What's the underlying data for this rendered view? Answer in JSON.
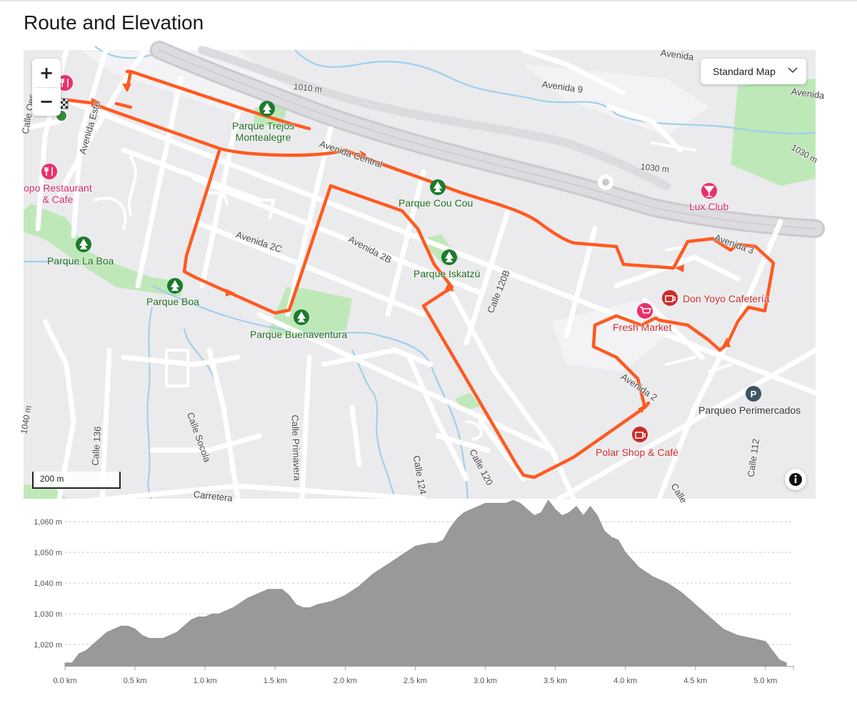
{
  "title": "Route and Elevation",
  "map": {
    "zoom_in_label": "+",
    "zoom_out_label": "−",
    "map_type": "Standard Map",
    "scale": "200 m",
    "accent": "#ff5a1f",
    "labels": {
      "parque_trejos": "Parque Trejos\nMontealegre",
      "parque_cou": "Parque Cou Cou",
      "parque_laboa": "Parque La Boa",
      "parque_boa": "Parque Boa",
      "parque_buena": "Parque Buenaventura",
      "parque_iskatzu": "Parque Iskatzú",
      "restaurant": "opo Restaurant\n& Cafe",
      "lux": "Lux Club",
      "donyoyo": "Don Yoyo Cafetería",
      "fresh": "Fresh Market",
      "polar": "Polar Shop & Café",
      "parqueo": "Parqueo Perimercados"
    },
    "streets": {
      "avenida_este": "Avenida Este",
      "avenida_central": "Avenida Central",
      "avenida_9": "Avenida 9",
      "avenida_top": "Avenida",
      "avenida_right": "Avenida",
      "avenida_2c": "Avenida 2C",
      "avenida_2b": "Avenida 2B",
      "avenida_3": "Avenida 3",
      "avenida_2": "Avenida 2",
      "calle_120b": "Calle 120B",
      "calle_136": "Calle 136",
      "calle_socola": "Calle Socola",
      "calle_primavera": "Calle Primavera",
      "calle_124": "Calle 124",
      "calle_120": "Calle 120",
      "calle_112": "Calle 112",
      "carretera": "Carretera",
      "calle_l": "Calle",
      "calle_o": "Calle Oes",
      "c1010": "1010 m",
      "c1030a": "1030 m",
      "c1030b": "1030 m",
      "c1040": "1040 m"
    }
  },
  "elevation": {
    "y_ticks": [
      "1,060 m",
      "1,050 m",
      "1,040 m",
      "1,030 m",
      "1,020 m"
    ],
    "x_ticks": [
      "0.0 km",
      "0.5 km",
      "1.0 km",
      "1.5 km",
      "2.0 km",
      "2.5 km",
      "3.0 km",
      "3.5 km",
      "4.0 km",
      "4.5 km",
      "5.0 km"
    ],
    "fill_color": "#999999"
  },
  "chart_data": {
    "type": "area",
    "title": "",
    "xlabel": "",
    "ylabel": "",
    "xlim": [
      0,
      5.2
    ],
    "ylim": [
      1013,
      1067
    ],
    "x_unit": "km",
    "y_unit": "m",
    "grid": true,
    "x": [
      0.0,
      0.05,
      0.1,
      0.15,
      0.2,
      0.3,
      0.4,
      0.45,
      0.5,
      0.55,
      0.6,
      0.7,
      0.8,
      0.85,
      0.9,
      0.95,
      1.0,
      1.05,
      1.1,
      1.2,
      1.3,
      1.4,
      1.45,
      1.5,
      1.55,
      1.6,
      1.65,
      1.7,
      1.75,
      1.8,
      1.9,
      2.0,
      2.1,
      2.2,
      2.3,
      2.4,
      2.5,
      2.6,
      2.65,
      2.7,
      2.75,
      2.8,
      2.85,
      2.9,
      2.95,
      3.0,
      3.05,
      3.1,
      3.15,
      3.2,
      3.25,
      3.3,
      3.35,
      3.4,
      3.45,
      3.5,
      3.55,
      3.6,
      3.65,
      3.7,
      3.75,
      3.8,
      3.85,
      3.9,
      3.95,
      4.0,
      4.1,
      4.2,
      4.3,
      4.4,
      4.5,
      4.6,
      4.7,
      4.8,
      4.9,
      5.0,
      5.05,
      5.1,
      5.15
    ],
    "series": [
      {
        "values": [
          1014,
          1014,
          1017,
          1018,
          1020,
          1024,
          1026,
          1026,
          1025,
          1023,
          1022,
          1022,
          1024,
          1026,
          1028,
          1029,
          1029,
          1030,
          1030,
          1032,
          1035,
          1037,
          1038,
          1038,
          1038,
          1036,
          1033,
          1032,
          1032,
          1033,
          1034,
          1036,
          1039,
          1043,
          1046,
          1049,
          1052,
          1053,
          1053,
          1054,
          1058,
          1061,
          1063,
          1064,
          1065,
          1066,
          1066,
          1066,
          1066,
          1067,
          1066,
          1064,
          1062,
          1063,
          1067,
          1064,
          1062,
          1063,
          1065,
          1062,
          1065,
          1062,
          1057,
          1055,
          1054,
          1050,
          1045,
          1042,
          1040,
          1037,
          1033,
          1029,
          1025,
          1023,
          1022,
          1021,
          1018,
          1015,
          1014
        ]
      }
    ]
  }
}
